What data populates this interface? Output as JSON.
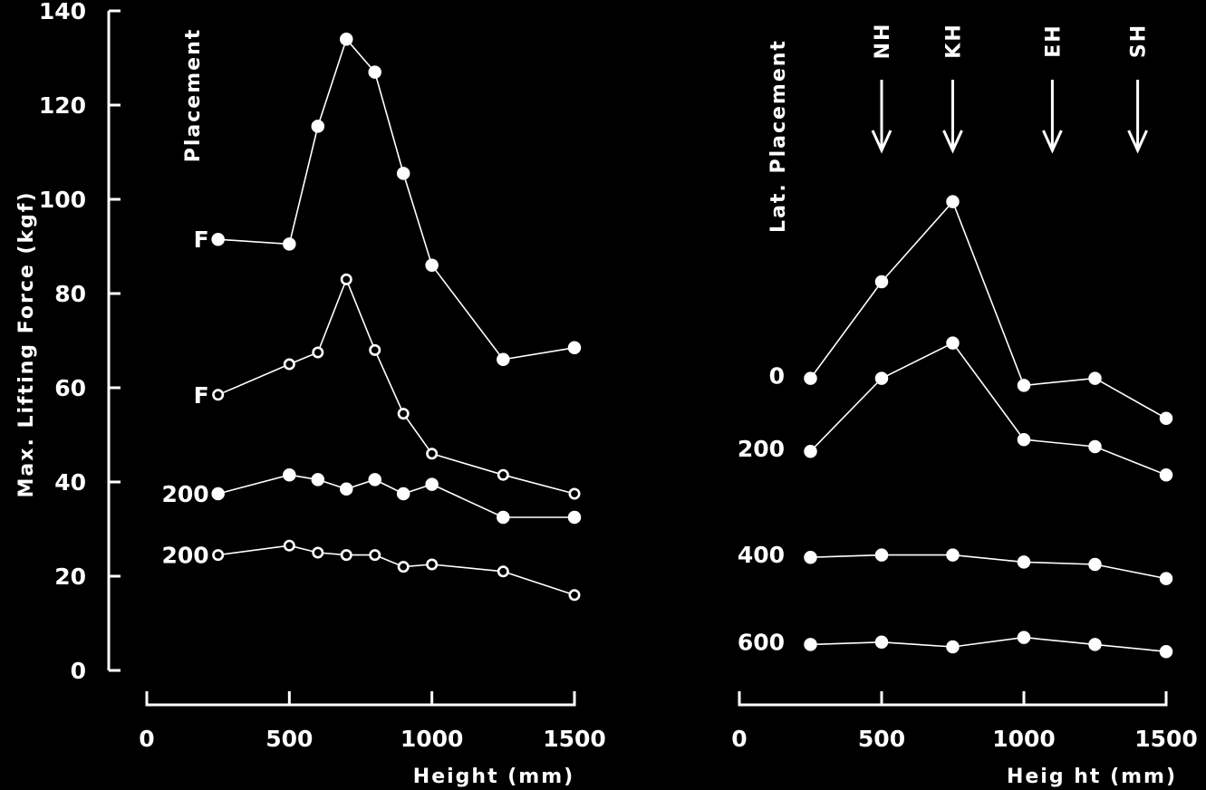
{
  "chart_data": [
    {
      "type": "line",
      "panel": "left",
      "xlabel": "Height  (mm)",
      "ylabel": "Max. Lifting Force    (kgf)",
      "placement_label": "Placement",
      "xlim": [
        0,
        1500
      ],
      "ylim": [
        0,
        140
      ],
      "xticks": [
        0,
        500,
        1000,
        1500
      ],
      "yticks": [
        0,
        20,
        40,
        60,
        80,
        100,
        120,
        140
      ],
      "series": [
        {
          "label": "F",
          "marker": "filled",
          "x": [
            250,
            500,
            600,
            700,
            800,
            900,
            1000,
            1250,
            1500
          ],
          "y": [
            91.5,
            90.5,
            115.5,
            134,
            127,
            105.5,
            86,
            66,
            68.5
          ]
        },
        {
          "label": "F",
          "marker": "open",
          "x": [
            250,
            500,
            600,
            700,
            800,
            900,
            1000,
            1250,
            1500
          ],
          "y": [
            58.5,
            65,
            67.5,
            83,
            68,
            54.5,
            46,
            41.5,
            37.5
          ]
        },
        {
          "label": "200",
          "marker": "filled",
          "x": [
            250,
            500,
            600,
            700,
            800,
            900,
            1000,
            1250,
            1500
          ],
          "y": [
            37.5,
            41.5,
            40.5,
            38.5,
            40.5,
            37.5,
            39.5,
            32.5,
            32.5
          ]
        },
        {
          "label": "200",
          "marker": "open",
          "x": [
            250,
            500,
            600,
            700,
            800,
            900,
            1000,
            1250,
            1500
          ],
          "y": [
            24.5,
            26.5,
            25,
            24.5,
            24.5,
            22,
            22.5,
            21,
            16
          ]
        }
      ]
    },
    {
      "type": "line",
      "panel": "right",
      "xlabel": "Heig ht    (mm)",
      "ylabel": "Lat.  Placement",
      "xlim": [
        0,
        1500
      ],
      "xticks": [
        0,
        500,
        1000,
        1500
      ],
      "reference_arrows": [
        {
          "label": "NH",
          "x": 500
        },
        {
          "label": "KH",
          "x": 750
        },
        {
          "label": "EH",
          "x": 1100
        },
        {
          "label": "SH",
          "x": 1400
        }
      ],
      "series": [
        {
          "label": "0",
          "marker": "filled",
          "x": [
            250,
            500,
            750,
            1000,
            1250,
            1500
          ],
          "y": [
            62,
            82.5,
            99.5,
            60.5,
            62,
            53.5
          ]
        },
        {
          "label": "200",
          "marker": "filled",
          "x": [
            250,
            500,
            750,
            1000,
            1250,
            1500
          ],
          "y": [
            46.5,
            62,
            69.5,
            49,
            47.5,
            41.5
          ]
        },
        {
          "label": "400",
          "marker": "filled",
          "x": [
            250,
            500,
            750,
            1000,
            1250,
            1500
          ],
          "y": [
            24,
            24.5,
            24.5,
            23,
            22.5,
            19.5
          ]
        },
        {
          "label": "600",
          "marker": "filled",
          "x": [
            250,
            500,
            750,
            1000,
            1250,
            1500
          ],
          "y": [
            5.5,
            6,
            5,
            7,
            5.5,
            4
          ]
        }
      ]
    }
  ]
}
